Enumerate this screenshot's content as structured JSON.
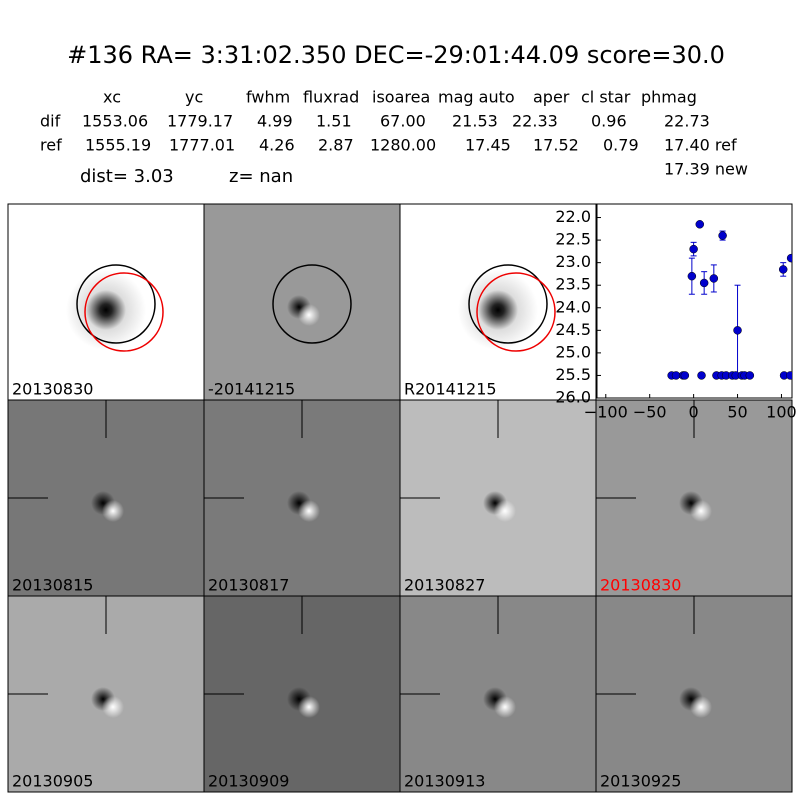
{
  "header": {
    "title": "#136   RA= 3:31:02.350 DEC=-29:01:44.09      score=30.0"
  },
  "table": {
    "columns": [
      "xc",
      "yc",
      "fwhm",
      "fluxrad",
      "isoarea",
      "mag auto",
      "aper",
      "cl star",
      "phmag"
    ],
    "rows": [
      {
        "label": "dif",
        "cells": [
          "1553.06",
          "1779.17",
          "4.99",
          "1.51",
          "67.00",
          "21.53",
          "22.33",
          "0.96",
          "22.73"
        ]
      },
      {
        "label": "ref",
        "cells": [
          "1555.19",
          "1777.01",
          "4.26",
          "2.87",
          "1280.00",
          "17.45",
          "17.52",
          "0.79",
          "17.40 ref"
        ]
      }
    ],
    "extra": "17.39 new"
  },
  "summary": {
    "dist": "dist=  3.03",
    "z": "z=   nan"
  },
  "stamps": [
    {
      "label": "20130830",
      "color": "#000000"
    },
    {
      "label": "-20141215",
      "color": "#000000"
    },
    {
      "label": "R20141215",
      "color": "#000000"
    },
    {
      "label": "20130815",
      "color": "#000000"
    },
    {
      "label": "20130817",
      "color": "#000000"
    },
    {
      "label": "20130827",
      "color": "#000000"
    },
    {
      "label": "20130830",
      "color": "#ff0000"
    },
    {
      "label": "20130905",
      "color": "#000000"
    },
    {
      "label": "20130909",
      "color": "#000000"
    },
    {
      "label": "20130913",
      "color": "#000000"
    },
    {
      "label": "20130925",
      "color": "#000000"
    }
  ],
  "chart_data": {
    "type": "scatter",
    "color": "#0000cc",
    "x": [
      -25,
      -20,
      -12,
      -10,
      -2,
      0,
      7,
      9,
      12,
      23,
      26,
      32,
      33,
      37,
      44,
      48,
      50,
      55,
      58,
      64,
      102,
      103,
      110,
      111
    ],
    "values": [
      25.5,
      25.5,
      25.5,
      25.5,
      23.3,
      22.7,
      22.15,
      25.5,
      23.45,
      23.35,
      25.5,
      25.5,
      22.4,
      25.5,
      25.5,
      25.5,
      24.5,
      25.5,
      25.5,
      25.5,
      23.15,
      25.5,
      25.5,
      22.9
    ],
    "errors": [
      0,
      0,
      0,
      0,
      0.4,
      0.15,
      0,
      0,
      0.25,
      0.3,
      0,
      0,
      0.1,
      0,
      0,
      0,
      1.0,
      0,
      0,
      0,
      0.15,
      0,
      0,
      0
    ],
    "xlim": [
      -110,
      112
    ],
    "ylim": [
      26,
      21.7
    ],
    "xticks": [
      {
        "value": -100,
        "label": "−100"
      },
      {
        "value": -50,
        "label": "−50"
      },
      0,
      50,
      100
    ],
    "yticks": [
      {
        "value": 22,
        "label": "22.0"
      },
      22.5,
      23.5,
      {
        "value": 23,
        "label": "23.0"
      },
      {
        "value": 24,
        "label": "24.0"
      },
      24.5,
      {
        "value": 25,
        "label": "25.0"
      },
      25.5,
      {
        "value": 26,
        "label": "26.0"
      }
    ]
  }
}
